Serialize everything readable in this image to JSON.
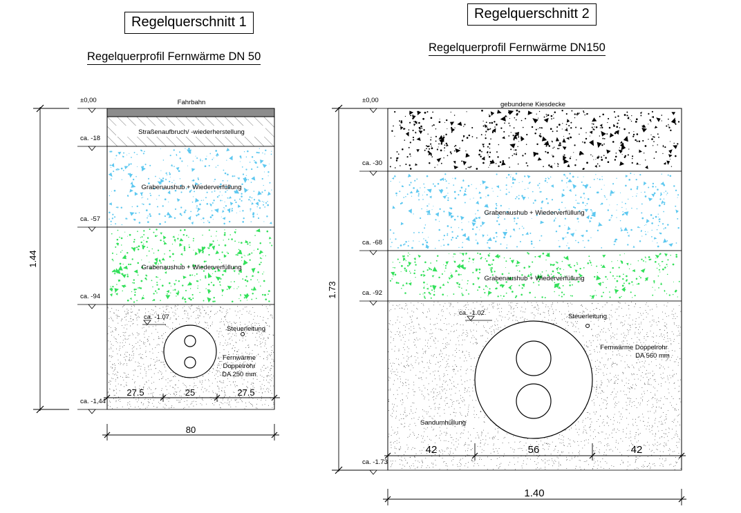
{
  "section1": {
    "title": "Regelquerschnitt 1",
    "subtitle": "Regelquerprofil Fernwärme   DN 50",
    "surface_label": "Fahrbahn",
    "layers": [
      {
        "label": "Straßenaufbruch/ -wiederherstellung",
        "fill": "hatch"
      },
      {
        "label": "Grabenaushub + Wiederverfüllung",
        "fill": "#5ec8f0"
      },
      {
        "label": "Grabenaushub + Wiederverfüllung",
        "fill": "#33e05a"
      }
    ],
    "levels": [
      "±0,00",
      "ca. -18",
      "ca. -57",
      "ca. -94",
      "ca. -1,44"
    ],
    "pipe_level": "ca. -1.07",
    "control_line": "Steuerleitung",
    "pipe_label": [
      "Fernwärme",
      "Doppelrohr",
      "DA 250 mm"
    ],
    "widths": [
      "27.5",
      "25",
      "27.5"
    ],
    "total_width": "80",
    "total_depth": "1.44"
  },
  "section2": {
    "title": "Regelquerschnitt 2",
    "subtitle": "Regelquerprofil Fernwärme   DN150",
    "surface_label": "gebundene Kiesdecke",
    "layers": [
      {
        "label": "Grabenaushub + Wiederverfüllung",
        "fill": "#5ec8f0"
      },
      {
        "label": "Grabenaushub + Wiederverfüllung",
        "fill": "#33e05a"
      }
    ],
    "levels": [
      "±0,00",
      "ca. -30",
      "ca. -68",
      "ca. -92",
      "ca. -1.73"
    ],
    "pipe_level": "ca. -1.02",
    "control_line": "Steuerleitung",
    "pipe_label": [
      "Fernwärme Doppelrohr",
      "DA 560 mm"
    ],
    "sand_label": "Sandumhüllung",
    "widths": [
      "42",
      "56",
      "42"
    ],
    "total_width": "1.40",
    "total_depth": "1.73"
  }
}
